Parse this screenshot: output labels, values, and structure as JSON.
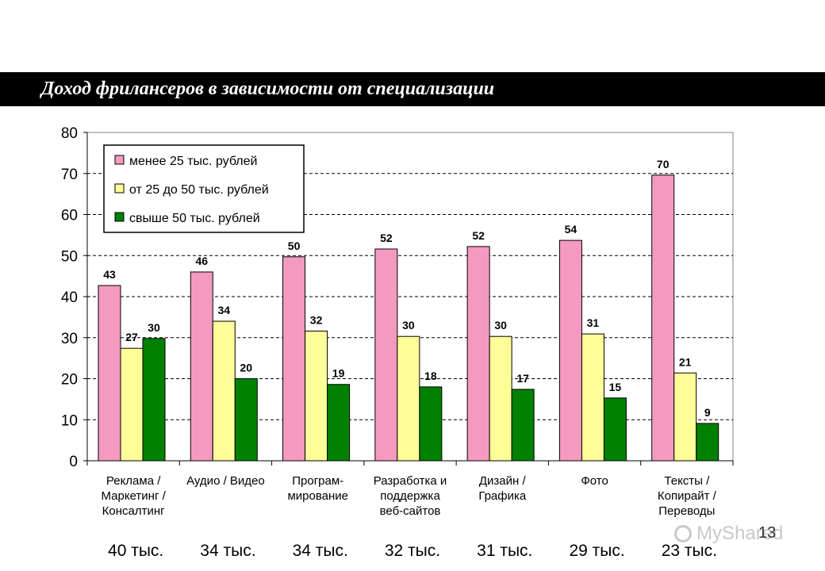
{
  "title": "Доход фрилансеров в зависимости от специализации",
  "page_number": "13",
  "watermark": "MyShared",
  "colors": {
    "title_bg": "#000000",
    "title_text": "#ffffff",
    "pink": "#f49ac1",
    "yellow": "#ffff99",
    "green": "#008000",
    "grid": "#000000"
  },
  "chart_data": {
    "type": "bar",
    "title": "",
    "xlabel": "",
    "ylabel": "",
    "ylim": [
      0,
      80
    ],
    "yticks": [
      0,
      10,
      20,
      30,
      40,
      50,
      60,
      70,
      80
    ],
    "grid": "dashed horizontal",
    "legend_position": "top-left",
    "categories": [
      [
        "Реклама /",
        "Маркетинг /",
        "Консалтинг"
      ],
      [
        "Аудио / Видео"
      ],
      [
        "Програм-",
        "мирование"
      ],
      [
        "Разработка и",
        "поддержка",
        "веб-сайтов"
      ],
      [
        "Дизайн /",
        "Графика"
      ],
      [
        "Фото"
      ],
      [
        "Тексты /",
        "Копирайт /",
        "Переводы"
      ]
    ],
    "averages": [
      "40 тыс.",
      "34 тыс.",
      "34 тыс.",
      "32 тыс.",
      "31 тыс.",
      "29 тыс.",
      "23 тыс."
    ],
    "series": [
      {
        "name": "менее 25 тыс. рублей",
        "color": "#f49ac1",
        "values": [
          43,
          46,
          50,
          52,
          52,
          54,
          70
        ],
        "plotted": [
          42.7,
          46,
          49.7,
          51.6,
          52.2,
          53.7,
          69.6
        ]
      },
      {
        "name": "от 25 до 50 тыс. рублей",
        "color": "#ffff99",
        "values": [
          27,
          34,
          32,
          30,
          30,
          31,
          21
        ],
        "plotted": [
          27.4,
          34,
          31.6,
          30.3,
          30.3,
          30.9,
          21.4
        ]
      },
      {
        "name": "свыше 50 тыс. рублей",
        "color": "#008000",
        "values": [
          30,
          20,
          19,
          18,
          17,
          15,
          9
        ],
        "plotted": [
          29.8,
          20,
          18.6,
          18,
          17.4,
          15.3,
          9.1
        ]
      }
    ]
  }
}
